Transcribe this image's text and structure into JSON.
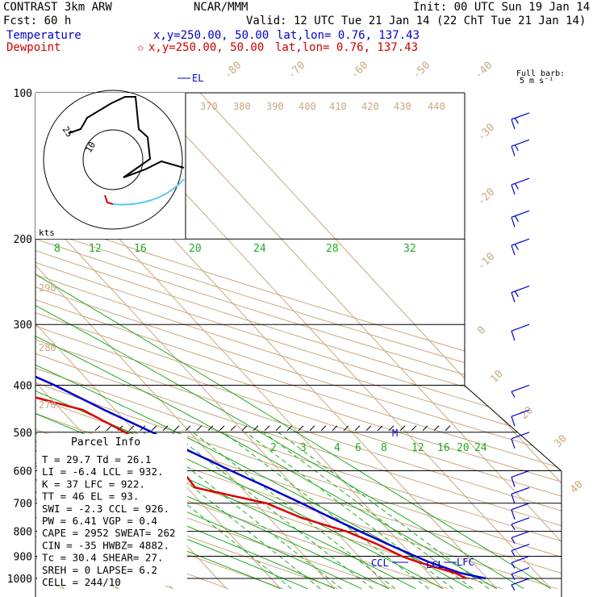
{
  "header": {
    "model": "CONTRAST  3km ARW",
    "center": "NCAR/MMM",
    "init": "Init: 00 UTC Sun 19 Jan 14",
    "fcst": "Fcst:   60 h",
    "valid": "Valid: 12 UTC Tue 21 Jan 14 (22 ChT Tue 21 Jan 14)",
    "temp_label": "Temperature",
    "temp_xy": "x,y=250.00, 50.00",
    "temp_latlon": "lat,lon=  0.76, 137.43",
    "dew_label": "Dewpoint",
    "dew_marker": "✩",
    "dew_xy": "x,y=250.00, 50.00",
    "dew_latlon": "lat,lon=  0.76, 137.43"
  },
  "barb_legend": {
    "line1": "Full barb:",
    "line2": "5 m s⁻¹"
  },
  "parcel_info": {
    "title": "Parcel Info",
    "rows": [
      "T  =   29.7 Td =  26.1",
      "LI =   -6.4 LCL =  932.",
      "K  =     37 LFC =  922.",
      "TT =     46 EL  =   93.",
      "SWI =  -2.3 CCL =  926.",
      "PW =   6.41 VGP =   0.4",
      "CAPE = 2952 SWEAT=  262",
      "CIN =   -35 HWBZ= 4882.",
      "Tc =   30.4 SHEAR=  27.",
      "SREH =    0 LAPSE=  6.2",
      "CELL = 244/10"
    ]
  },
  "hodograph": {
    "ring_labels": [
      "10",
      "25"
    ],
    "units": "kts"
  },
  "markers": {
    "el": "EL",
    "ccl": "CCL",
    "lcl": "LCL",
    "lfc": "LFC",
    "m": "M"
  },
  "colors": {
    "temperature": "#0000cc",
    "dewpoint": "#dd0000",
    "isotherm": "#c8a882",
    "mixing_ratio": "#22aa22",
    "hodo_low": "#55ccee",
    "hodo_high": "#000000",
    "hodo_start": "#dd0000"
  },
  "chart_data": {
    "type": "line",
    "chart_kind": "Skew-T log-P sounding",
    "ylabel": "",
    "y_scale": "log (pressure, hPa, inverted)",
    "pressure_ticks": [
      100,
      200,
      300,
      400,
      500,
      600,
      700,
      800,
      900,
      1000
    ],
    "temperature_ticks": [
      -80,
      -70,
      -60,
      -50,
      -40,
      -30,
      -20,
      -10,
      0,
      10,
      20,
      30,
      40
    ],
    "theta_ticks": [
      270,
      280,
      290,
      370,
      380,
      390,
      400,
      410,
      420,
      430,
      440
    ],
    "mixing_ratio_upper": [
      8,
      12,
      16,
      20,
      24,
      28,
      32
    ],
    "mixing_ratio_lower": [
      2,
      3,
      4,
      6,
      8,
      12,
      16,
      20,
      24
    ],
    "series": [
      {
        "name": "Temperature",
        "pressure": [
          1000,
          975,
          950,
          925,
          900,
          850,
          800,
          750,
          700,
          650,
          600,
          550,
          500,
          450,
          400,
          350,
          300,
          250,
          200,
          150,
          110,
          100
        ],
        "temp_c": [
          29.7,
          26,
          24,
          22,
          20.5,
          17.5,
          14.5,
          11.5,
          8.5,
          5,
          1,
          -3,
          -7,
          -12,
          -17,
          -24,
          -31.5,
          -42,
          -54,
          -68,
          -82,
          -83
        ]
      },
      {
        "name": "Dewpoint",
        "pressure": [
          1000,
          975,
          950,
          925,
          900,
          850,
          800,
          750,
          700,
          650,
          600,
          550,
          500,
          450,
          400,
          350,
          300,
          250,
          200,
          150,
          110,
          100
        ],
        "dewpoint_c": [
          26.1,
          25,
          22.5,
          20,
          18,
          15.5,
          12,
          6,
          2,
          -8.5,
          -8,
          -9,
          -12,
          -16,
          -29,
          -35,
          -42.5,
          -56,
          -67,
          -77,
          -89,
          -83
        ]
      }
    ],
    "wind_barbs_ms": [
      {
        "p": 1000,
        "spd": 5
      },
      {
        "p": 950,
        "spd": 5
      },
      {
        "p": 900,
        "spd": 5
      },
      {
        "p": 850,
        "spd": 5
      },
      {
        "p": 800,
        "spd": 5
      },
      {
        "p": 750,
        "spd": 5
      },
      {
        "p": 700,
        "spd": 10
      },
      {
        "p": 650,
        "spd": 10
      },
      {
        "p": 600,
        "spd": 10
      },
      {
        "p": 500,
        "spd": 10
      },
      {
        "p": 450,
        "spd": 10
      },
      {
        "p": 400,
        "spd": 5
      },
      {
        "p": 300,
        "spd": 10
      },
      {
        "p": 250,
        "spd": 15
      },
      {
        "p": 200,
        "spd": 15
      },
      {
        "p": 175,
        "spd": 15
      },
      {
        "p": 150,
        "spd": 15
      },
      {
        "p": 125,
        "spd": 15
      },
      {
        "p": 110,
        "spd": 15
      }
    ]
  }
}
